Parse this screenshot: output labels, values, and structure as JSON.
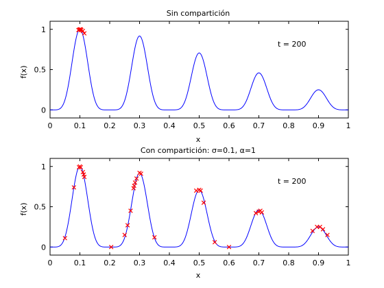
{
  "chart_data": [
    {
      "type": "line",
      "title": "Sin compartición",
      "xlabel": "x",
      "ylabel": "f(x)",
      "annotation": "t = 200",
      "xlim": [
        0,
        1
      ],
      "ylim": [
        -0.1,
        1.1
      ],
      "xticks": [
        0,
        0.1,
        0.2,
        0.3,
        0.4,
        0.5,
        0.6,
        0.7,
        0.8,
        0.9,
        1
      ],
      "yticks": [
        0,
        0.5,
        1
      ],
      "function": {
        "peak_x": [
          0.1,
          0.3,
          0.5,
          0.7,
          0.9
        ],
        "peak_y": [
          1.0,
          0.917,
          0.707,
          0.459,
          0.25
        ],
        "x": [
          0.0,
          0.02,
          0.04,
          0.06,
          0.08,
          0.1,
          0.12,
          0.14,
          0.16,
          0.18,
          0.2,
          0.22,
          0.24,
          0.26,
          0.28,
          0.3,
          0.32,
          0.34,
          0.36,
          0.38,
          0.4,
          0.42,
          0.44,
          0.46,
          0.48,
          0.5,
          0.52,
          0.54,
          0.56,
          0.58,
          0.6,
          0.62,
          0.64,
          0.66,
          0.68,
          0.7,
          0.72,
          0.74,
          0.76,
          0.78,
          0.8,
          0.82,
          0.84,
          0.86,
          0.88,
          0.9,
          0.92,
          0.94,
          0.96,
          0.98,
          1.0
        ],
        "y": [
          0.0,
          0.0,
          0.08,
          0.45,
          0.88,
          1.0,
          0.9,
          0.48,
          0.09,
          0.0,
          0.0,
          0.0,
          0.08,
          0.41,
          0.8,
          0.92,
          0.82,
          0.43,
          0.08,
          0.0,
          0.0,
          0.0,
          0.06,
          0.32,
          0.62,
          0.71,
          0.63,
          0.33,
          0.06,
          0.0,
          0.0,
          0.0,
          0.04,
          0.21,
          0.4,
          0.46,
          0.41,
          0.22,
          0.04,
          0.0,
          0.0,
          0.0,
          0.02,
          0.11,
          0.22,
          0.25,
          0.22,
          0.12,
          0.02,
          0.0,
          0.0
        ]
      },
      "series": [
        {
          "points": [
            [
              0.095,
              0.99
            ],
            [
              0.1,
              1.0
            ],
            [
              0.105,
              0.99
            ],
            [
              0.11,
              0.98
            ],
            [
              0.115,
              0.95
            ],
            [
              0.098,
              0.995
            ],
            [
              0.103,
              1.0
            ]
          ]
        }
      ]
    },
    {
      "type": "line",
      "title": "Con compartición: σ=0.1, α=1",
      "xlabel": "x",
      "ylabel": "f(x)",
      "annotation": "t = 200",
      "xlim": [
        0,
        1
      ],
      "ylim": [
        -0.1,
        1.1
      ],
      "xticks": [
        0,
        0.1,
        0.2,
        0.3,
        0.4,
        0.5,
        0.6,
        0.7,
        0.8,
        0.9,
        1
      ],
      "yticks": [
        0,
        0.5,
        1
      ],
      "function": {
        "peak_x": [
          0.1,
          0.3,
          0.5,
          0.7,
          0.9
        ],
        "peak_y": [
          1.0,
          0.917,
          0.707,
          0.459,
          0.25
        ],
        "x": [
          0.0,
          0.02,
          0.04,
          0.06,
          0.08,
          0.1,
          0.12,
          0.14,
          0.16,
          0.18,
          0.2,
          0.22,
          0.24,
          0.26,
          0.28,
          0.3,
          0.32,
          0.34,
          0.36,
          0.38,
          0.4,
          0.42,
          0.44,
          0.46,
          0.48,
          0.5,
          0.52,
          0.54,
          0.56,
          0.58,
          0.6,
          0.62,
          0.64,
          0.66,
          0.68,
          0.7,
          0.72,
          0.74,
          0.76,
          0.78,
          0.8,
          0.82,
          0.84,
          0.86,
          0.88,
          0.9,
          0.92,
          0.94,
          0.96,
          0.98,
          1.0
        ],
        "y": [
          0.0,
          0.0,
          0.08,
          0.45,
          0.88,
          1.0,
          0.9,
          0.48,
          0.09,
          0.0,
          0.0,
          0.0,
          0.08,
          0.41,
          0.8,
          0.92,
          0.82,
          0.43,
          0.08,
          0.0,
          0.0,
          0.0,
          0.06,
          0.32,
          0.62,
          0.71,
          0.63,
          0.33,
          0.06,
          0.0,
          0.0,
          0.0,
          0.04,
          0.21,
          0.4,
          0.46,
          0.41,
          0.22,
          0.04,
          0.0,
          0.0,
          0.0,
          0.02,
          0.11,
          0.22,
          0.25,
          0.22,
          0.12,
          0.02,
          0.0,
          0.0
        ]
      },
      "series": [
        {
          "points": [
            [
              0.05,
              0.11
            ],
            [
              0.08,
              0.74
            ],
            [
              0.097,
              0.99
            ],
            [
              0.1,
              1.0
            ],
            [
              0.103,
              0.99
            ],
            [
              0.11,
              0.93
            ],
            [
              0.115,
              0.87
            ],
            [
              0.113,
              0.9
            ],
            [
              0.205,
              0.0
            ],
            [
              0.25,
              0.15
            ],
            [
              0.26,
              0.27
            ],
            [
              0.27,
              0.45
            ],
            [
              0.28,
              0.73
            ],
            [
              0.282,
              0.76
            ],
            [
              0.285,
              0.8
            ],
            [
              0.29,
              0.85
            ],
            [
              0.3,
              0.92
            ],
            [
              0.305,
              0.91
            ],
            [
              0.35,
              0.12
            ],
            [
              0.49,
              0.7
            ],
            [
              0.5,
              0.71
            ],
            [
              0.505,
              0.7
            ],
            [
              0.515,
              0.55
            ],
            [
              0.552,
              0.06
            ],
            [
              0.6,
              0.0
            ],
            [
              0.69,
              0.42
            ],
            [
              0.7,
              0.44
            ],
            [
              0.705,
              0.45
            ],
            [
              0.71,
              0.43
            ],
            [
              0.88,
              0.2
            ],
            [
              0.895,
              0.25
            ],
            [
              0.905,
              0.25
            ],
            [
              0.915,
              0.22
            ],
            [
              0.93,
              0.15
            ]
          ]
        }
      ]
    }
  ]
}
